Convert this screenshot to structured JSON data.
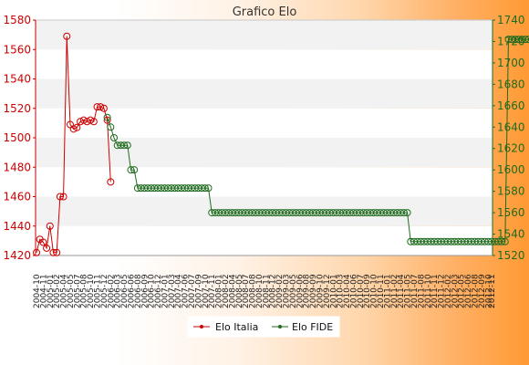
{
  "chart_data": {
    "type": "line",
    "title": "Grafico Elo",
    "background_gradient": [
      "#ffffff",
      "#ff9a33"
    ],
    "plot_band_colors": [
      "#f2f2f2",
      "#ffffff"
    ],
    "y_left": {
      "ylim": [
        1420,
        1580
      ],
      "ticks": [
        1420,
        1440,
        1460,
        1480,
        1500,
        1520,
        1540,
        1560,
        1580
      ],
      "color": "#cc0000"
    },
    "y_right": {
      "ylim": [
        1520,
        1740
      ],
      "ticks": [
        1520,
        1540,
        1560,
        1580,
        1600,
        1620,
        1640,
        1660,
        1680,
        1700,
        1720,
        1740
      ],
      "color": "#1f6b1f"
    },
    "x": {
      "point_count": 136,
      "first_label": "2004-10",
      "last_label": "2012-11"
    },
    "series": [
      {
        "name": "Elo Italia",
        "axis": "left",
        "color": "#cc0000",
        "values": [
          1422,
          1431,
          1429,
          1425,
          1440,
          1422,
          1422,
          1460,
          1460,
          1569,
          1509,
          1506,
          1507,
          1511,
          1512,
          1511,
          1512,
          1511,
          1521,
          1521,
          1520,
          1512,
          1470
        ]
      },
      {
        "name": "Elo FIDE",
        "axis": "right",
        "color": "#1f6b1f",
        "start_index": 21,
        "segments": [
          [
            1649,
            1640,
            1630,
            1623,
            1623,
            1623,
            1623,
            1600,
            1600,
            1583,
            1583,
            1583,
            1583,
            1583,
            1583,
            1583,
            1583,
            1583,
            1583,
            1583,
            1583,
            1583,
            1583,
            1583,
            1583,
            1583,
            1583,
            1583,
            1583,
            1583,
            1583
          ],
          {
            "value": 1560,
            "count": 59
          },
          {
            "value": 1533,
            "count": 29
          },
          {
            "value": 1722,
            "count": 17
          }
        ]
      }
    ],
    "legend": {
      "placement": "bottom-center"
    }
  }
}
